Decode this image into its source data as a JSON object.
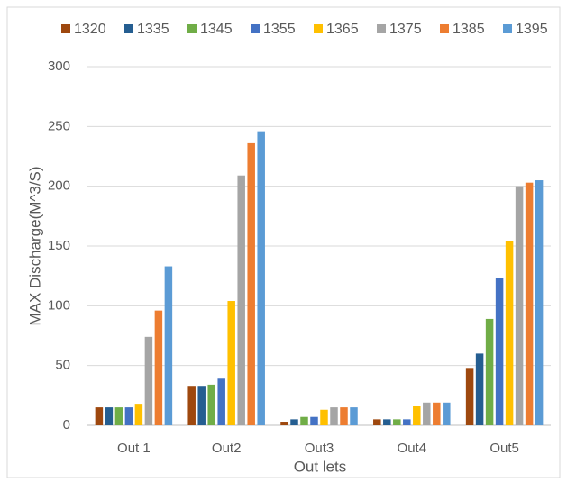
{
  "chart_data": {
    "type": "bar",
    "y_label": "MAX Discharge(M^3/S)",
    "x_label": "Out lets",
    "categories": [
      "Out 1",
      "Out2",
      "Out3",
      "Out4",
      "Out5"
    ],
    "series": [
      {
        "name": "1320",
        "color": "#9e480e",
        "values": [
          15,
          33,
          3,
          5,
          48
        ]
      },
      {
        "name": "1335",
        "color": "#255e91",
        "values": [
          15,
          33,
          5,
          5,
          60
        ]
      },
      {
        "name": "1345",
        "color": "#70ad47",
        "values": [
          15,
          34,
          7,
          5,
          89
        ]
      },
      {
        "name": "1355",
        "color": "#4472c4",
        "values": [
          15,
          39,
          7,
          5,
          123
        ]
      },
      {
        "name": "1365",
        "color": "#ffc000",
        "values": [
          18,
          104,
          13,
          16,
          154
        ]
      },
      {
        "name": "1375",
        "color": "#a5a5a5",
        "values": [
          74,
          209,
          15,
          19,
          200
        ]
      },
      {
        "name": "1385",
        "color": "#ed7d31",
        "values": [
          96,
          236,
          15,
          19,
          203
        ]
      },
      {
        "name": "1395",
        "color": "#5b9bd5",
        "values": [
          133,
          246,
          15,
          19,
          205
        ]
      }
    ],
    "ylim": [
      0,
      300
    ],
    "yticks": [
      0,
      50,
      100,
      150,
      200,
      250,
      300
    ],
    "grid": true,
    "legend": "top"
  }
}
